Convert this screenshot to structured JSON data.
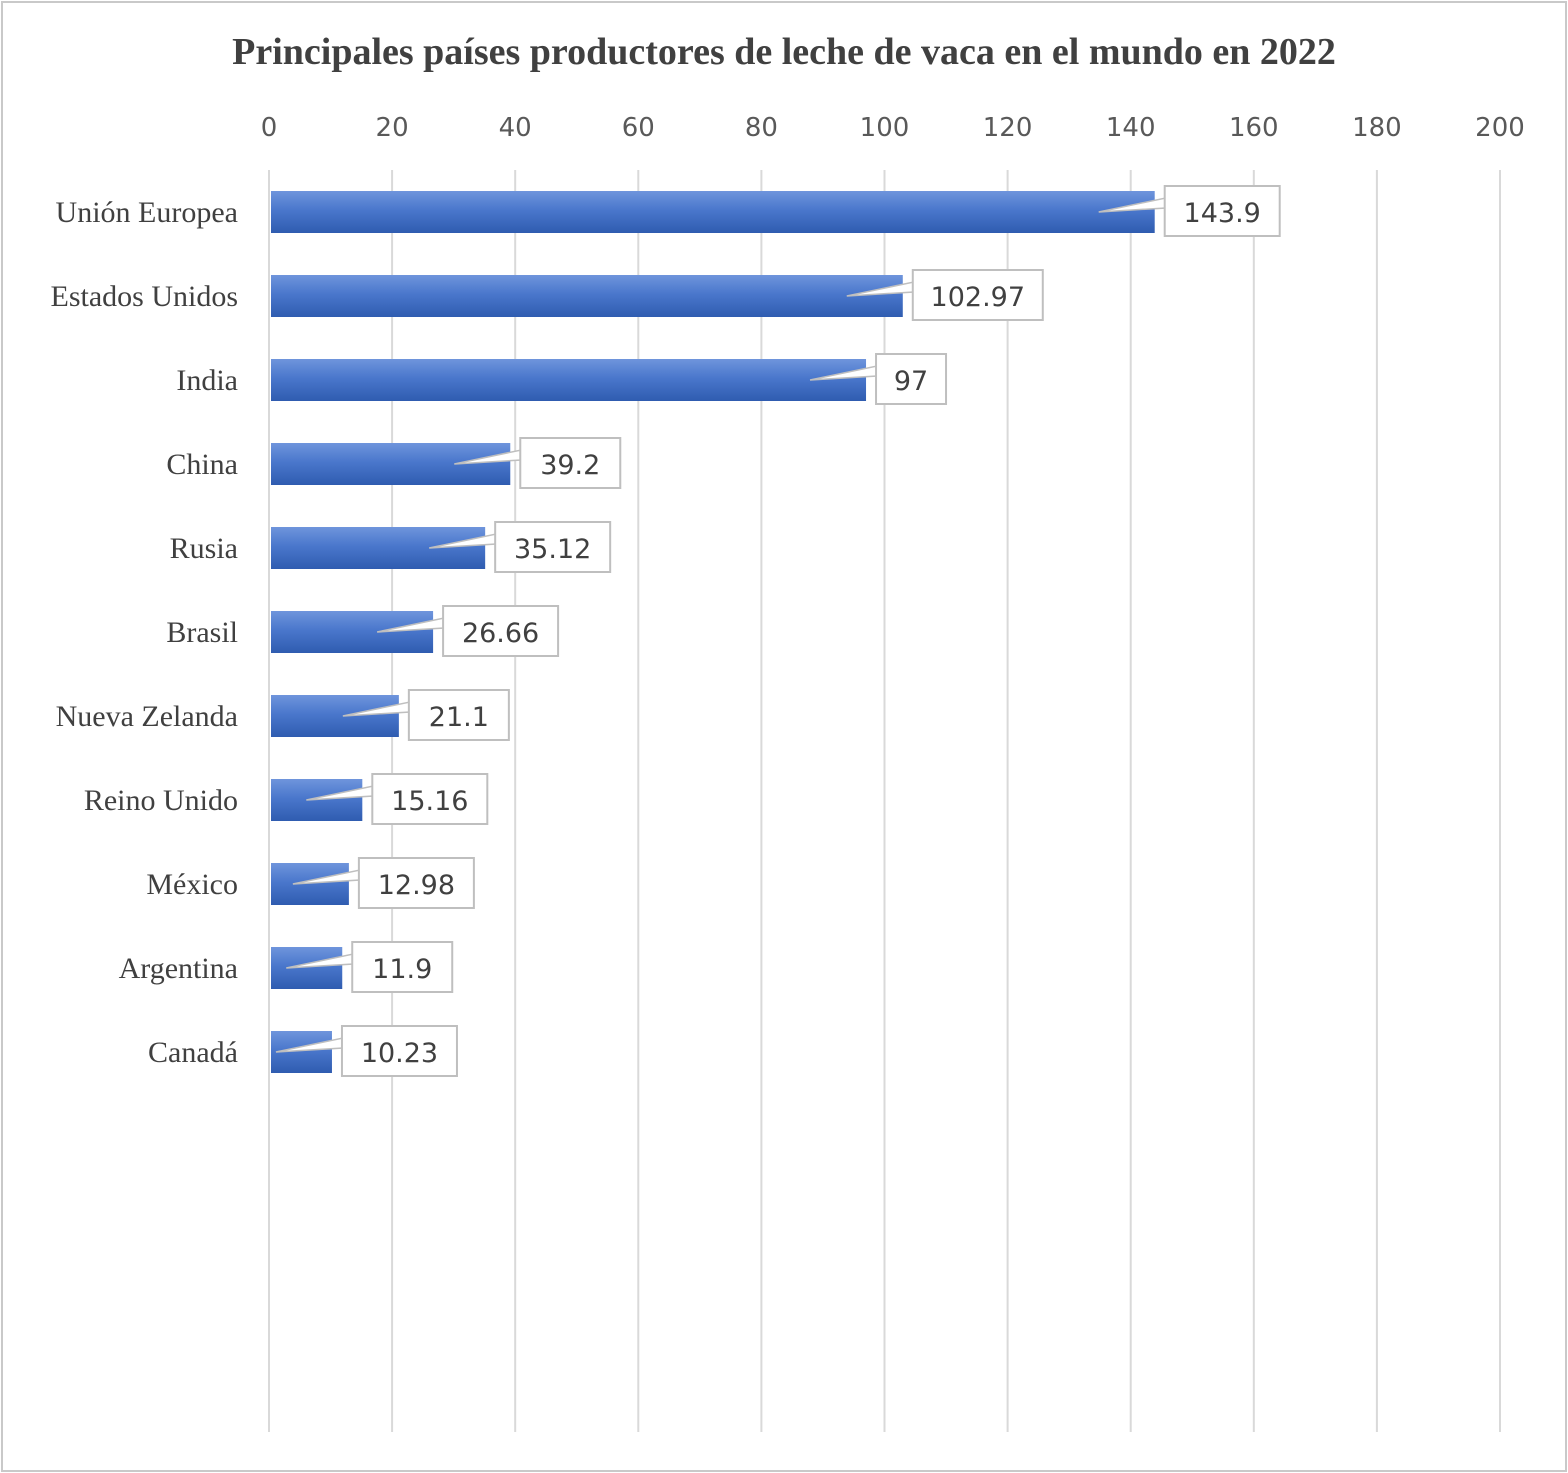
{
  "chart_data": {
    "type": "bar",
    "orientation": "horizontal",
    "title": "Principales países productores de leche de vaca en el mundo en 2022",
    "categories": [
      "Unión Europea",
      "Estados Unidos",
      "India",
      "China",
      "Rusia",
      "Brasil",
      "Nueva Zelanda",
      "Reino Unido",
      "México",
      "Argentina",
      "Canadá"
    ],
    "values": [
      143.9,
      102.97,
      97,
      39.2,
      35.12,
      26.66,
      21.1,
      15.16,
      12.98,
      11.9,
      10.23
    ],
    "data_labels": [
      "143.9",
      "102.97",
      "97",
      "39.2",
      "35.12",
      "26.66",
      "21.1",
      "15.16",
      "12.98",
      "11.9",
      "10.23"
    ],
    "xlim": [
      0,
      200
    ],
    "x_ticks": [
      "0",
      "20",
      "40",
      "60",
      "80",
      "100",
      "120",
      "140",
      "160",
      "180",
      "200"
    ],
    "x_axis_position": "top",
    "grid": true,
    "bar_color": "#4472C4"
  }
}
